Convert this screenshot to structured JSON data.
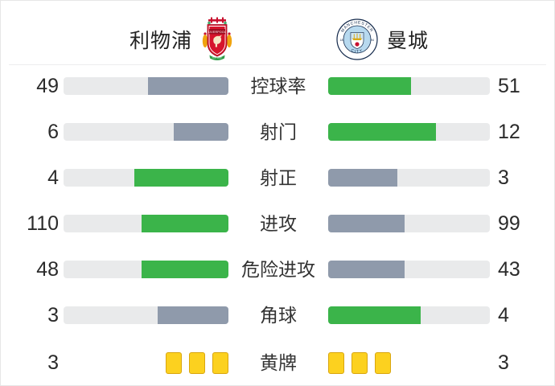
{
  "header": {
    "home_team": "利物浦",
    "away_team": "曼城",
    "home_crest": "liverpool-crest",
    "away_crest": "manchester-city-crest"
  },
  "colors": {
    "win_fill": "#3bb44a",
    "lose_fill": "#8f9aab",
    "track": "#e9eaeb",
    "card_fill": "#fcd11f",
    "card_border": "#d9a60f",
    "text": "#2b2b2b",
    "liverpool_red": "#c8102e",
    "city_blue": "#b7d9ef"
  },
  "chart_data": {
    "type": "bar",
    "subtype": "paired-horizontal-comparison",
    "title": "",
    "legend_position": "none",
    "grid": false,
    "teams": [
      "利物浦",
      "曼城"
    ],
    "value_rule": "bar fill fraction = value / (home + away); higher value shown green, lower shown gray",
    "rows": [
      {
        "label": "控球率",
        "home": 49,
        "away": 51,
        "display": "bars"
      },
      {
        "label": "射门",
        "home": 6,
        "away": 12,
        "display": "bars"
      },
      {
        "label": "射正",
        "home": 4,
        "away": 3,
        "display": "bars"
      },
      {
        "label": "进攻",
        "home": 110,
        "away": 99,
        "display": "bars"
      },
      {
        "label": "危险进攻",
        "home": 48,
        "away": 43,
        "display": "bars"
      },
      {
        "label": "角球",
        "home": 3,
        "away": 4,
        "display": "bars"
      },
      {
        "label": "黄牌",
        "home": 3,
        "away": 3,
        "display": "cards"
      }
    ]
  }
}
